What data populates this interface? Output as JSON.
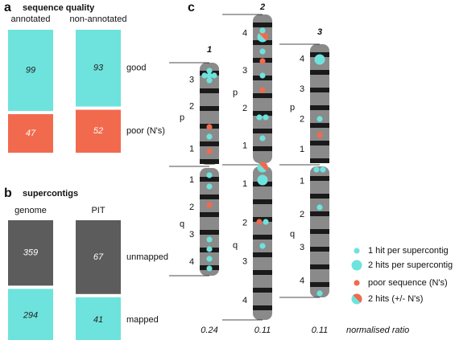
{
  "chart_data": [
    {
      "type": "stacked-bar",
      "panel": "a",
      "title": "sequence quality",
      "categories": [
        "annotated",
        "non-annotated"
      ],
      "series": [
        {
          "name": "good",
          "color": "#6ee3dd",
          "values": [
            99,
            93
          ]
        },
        {
          "name": "poor (N's)",
          "color": "#f26a4e",
          "values": [
            47,
            52
          ]
        }
      ]
    },
    {
      "type": "stacked-bar",
      "panel": "b",
      "title": "supercontigs",
      "categories": [
        "genome",
        "PIT"
      ],
      "series": [
        {
          "name": "unmapped",
          "color": "#5c5c5c",
          "values": [
            359,
            67
          ]
        },
        {
          "name": "mapped",
          "color": "#6ee3dd",
          "values": [
            294,
            41
          ]
        }
      ]
    },
    {
      "type": "ideogram",
      "panel": "c",
      "chromosomes": [
        {
          "name": "1",
          "ratio": 0.24,
          "arms": [
            {
              "name": "p",
              "bands": [
                3,
                2,
                1
              ]
            },
            {
              "name": "q",
              "bands": [
                1,
                2,
                3,
                4
              ]
            }
          ]
        },
        {
          "name": "2",
          "ratio": 0.11,
          "arms": [
            {
              "name": "p",
              "bands": [
                4,
                3,
                2,
                1
              ]
            },
            {
              "name": "q",
              "bands": [
                1,
                2,
                3,
                4
              ]
            }
          ]
        },
        {
          "name": "3",
          "ratio": 0.11,
          "arms": [
            {
              "name": "p",
              "bands": [
                4,
                3,
                2,
                1
              ]
            },
            {
              "name": "q",
              "bands": [
                1,
                2,
                3,
                4
              ]
            }
          ]
        }
      ],
      "ratio_label": "normalised ratio",
      "legend": [
        {
          "label": "1 hit per supercontig",
          "color": "#6ee3dd"
        },
        {
          "label": "2 hits per supercontig",
          "color": "#6ee3dd"
        },
        {
          "label": "poor sequence (N's)",
          "color": "#f26a4e"
        },
        {
          "label": "2 hits (+/- N's)",
          "color": "#f26a4e"
        }
      ]
    }
  ]
}
